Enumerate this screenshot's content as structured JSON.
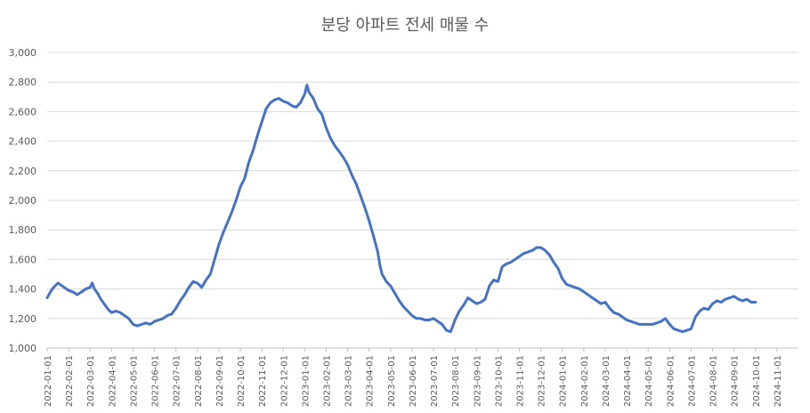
{
  "chart_data": {
    "type": "line",
    "title": "분당 아파트 전세 매물 수",
    "xlabel": "",
    "ylabel": "",
    "ylim": [
      1000,
      3000
    ],
    "y_ticks": [
      "1,000",
      "1,200",
      "1,400",
      "1,600",
      "1,800",
      "2,000",
      "2,200",
      "2,400",
      "2,600",
      "2,800",
      "3,000"
    ],
    "categories": [
      "2022-01-01",
      "2022-02-01",
      "2022-03-01",
      "2022-04-01",
      "2022-05-01",
      "2022-06-01",
      "2022-07-01",
      "2022-08-01",
      "2022-09-01",
      "2022-10-01",
      "2022-11-01",
      "2022-12-01",
      "2023-01-01",
      "2023-02-01",
      "2023-03-01",
      "2023-04-01",
      "2023-05-01",
      "2023-06-01",
      "2023-07-01",
      "2023-08-01",
      "2023-09-01",
      "2023-10-01",
      "2023-11-01",
      "2023-12-01",
      "2024-01-01",
      "2024-02-01",
      "2024-03-01",
      "2024-04-01",
      "2024-05-01",
      "2024-06-01",
      "2024-07-01",
      "2024-08-01",
      "2024-09-01",
      "2024-10-01",
      "2024-11-01"
    ],
    "grid": true,
    "legend": "none",
    "color": "#4472c4",
    "series": [
      {
        "values": [
          [
            0.0,
            1340
          ],
          [
            0.15,
            1380
          ],
          [
            0.3,
            1410
          ],
          [
            0.5,
            1440
          ],
          [
            0.7,
            1420
          ],
          [
            0.9,
            1400
          ],
          [
            1.0,
            1390
          ],
          [
            1.2,
            1380
          ],
          [
            1.4,
            1360
          ],
          [
            1.6,
            1380
          ],
          [
            1.8,
            1400
          ],
          [
            2.0,
            1410
          ],
          [
            2.1,
            1440
          ],
          [
            2.2,
            1400
          ],
          [
            2.35,
            1370
          ],
          [
            2.5,
            1330
          ],
          [
            2.7,
            1290
          ],
          [
            2.85,
            1260
          ],
          [
            3.0,
            1240
          ],
          [
            3.2,
            1250
          ],
          [
            3.4,
            1240
          ],
          [
            3.6,
            1220
          ],
          [
            3.8,
            1200
          ],
          [
            4.0,
            1160
          ],
          [
            4.2,
            1150
          ],
          [
            4.4,
            1160
          ],
          [
            4.6,
            1170
          ],
          [
            4.8,
            1160
          ],
          [
            5.0,
            1180
          ],
          [
            5.2,
            1190
          ],
          [
            5.4,
            1200
          ],
          [
            5.6,
            1220
          ],
          [
            5.8,
            1230
          ],
          [
            6.0,
            1270
          ],
          [
            6.2,
            1320
          ],
          [
            6.4,
            1360
          ],
          [
            6.6,
            1410
          ],
          [
            6.8,
            1450
          ],
          [
            7.0,
            1440
          ],
          [
            7.2,
            1410
          ],
          [
            7.4,
            1460
          ],
          [
            7.6,
            1500
          ],
          [
            7.8,
            1600
          ],
          [
            8.0,
            1700
          ],
          [
            8.2,
            1780
          ],
          [
            8.4,
            1850
          ],
          [
            8.6,
            1920
          ],
          [
            8.8,
            2000
          ],
          [
            9.0,
            2090
          ],
          [
            9.2,
            2150
          ],
          [
            9.4,
            2260
          ],
          [
            9.6,
            2340
          ],
          [
            9.8,
            2440
          ],
          [
            10.0,
            2530
          ],
          [
            10.2,
            2620
          ],
          [
            10.4,
            2660
          ],
          [
            10.6,
            2680
          ],
          [
            10.8,
            2690
          ],
          [
            11.0,
            2670
          ],
          [
            11.2,
            2660
          ],
          [
            11.4,
            2640
          ],
          [
            11.6,
            2630
          ],
          [
            11.8,
            2660
          ],
          [
            12.0,
            2720
          ],
          [
            12.1,
            2780
          ],
          [
            12.2,
            2730
          ],
          [
            12.4,
            2690
          ],
          [
            12.6,
            2620
          ],
          [
            12.8,
            2580
          ],
          [
            13.0,
            2490
          ],
          [
            13.2,
            2420
          ],
          [
            13.4,
            2370
          ],
          [
            13.6,
            2330
          ],
          [
            13.8,
            2290
          ],
          [
            14.0,
            2240
          ],
          [
            14.2,
            2170
          ],
          [
            14.4,
            2110
          ],
          [
            14.6,
            2030
          ],
          [
            14.8,
            1950
          ],
          [
            15.0,
            1860
          ],
          [
            15.2,
            1760
          ],
          [
            15.4,
            1650
          ],
          [
            15.5,
            1560
          ],
          [
            15.6,
            1500
          ],
          [
            15.8,
            1450
          ],
          [
            16.0,
            1420
          ],
          [
            16.2,
            1370
          ],
          [
            16.4,
            1320
          ],
          [
            16.6,
            1280
          ],
          [
            16.8,
            1250
          ],
          [
            17.0,
            1220
          ],
          [
            17.2,
            1200
          ],
          [
            17.4,
            1200
          ],
          [
            17.6,
            1190
          ],
          [
            17.8,
            1190
          ],
          [
            18.0,
            1200
          ],
          [
            18.2,
            1180
          ],
          [
            18.4,
            1160
          ],
          [
            18.6,
            1120
          ],
          [
            18.8,
            1110
          ],
          [
            19.0,
            1190
          ],
          [
            19.2,
            1250
          ],
          [
            19.4,
            1290
          ],
          [
            19.6,
            1340
          ],
          [
            19.8,
            1320
          ],
          [
            20.0,
            1300
          ],
          [
            20.2,
            1310
          ],
          [
            20.4,
            1330
          ],
          [
            20.6,
            1420
          ],
          [
            20.8,
            1460
          ],
          [
            21.0,
            1450
          ],
          [
            21.2,
            1550
          ],
          [
            21.4,
            1570
          ],
          [
            21.6,
            1580
          ],
          [
            21.8,
            1600
          ],
          [
            22.0,
            1620
          ],
          [
            22.2,
            1640
          ],
          [
            22.4,
            1650
          ],
          [
            22.6,
            1660
          ],
          [
            22.8,
            1680
          ],
          [
            23.0,
            1680
          ],
          [
            23.2,
            1660
          ],
          [
            23.4,
            1630
          ],
          [
            23.6,
            1580
          ],
          [
            23.8,
            1540
          ],
          [
            24.0,
            1470
          ],
          [
            24.2,
            1430
          ],
          [
            24.4,
            1420
          ],
          [
            24.6,
            1410
          ],
          [
            24.8,
            1400
          ],
          [
            25.0,
            1380
          ],
          [
            25.2,
            1360
          ],
          [
            25.4,
            1340
          ],
          [
            25.6,
            1320
          ],
          [
            25.8,
            1300
          ],
          [
            26.0,
            1310
          ],
          [
            26.2,
            1270
          ],
          [
            26.4,
            1240
          ],
          [
            26.6,
            1230
          ],
          [
            26.8,
            1210
          ],
          [
            27.0,
            1190
          ],
          [
            27.2,
            1180
          ],
          [
            27.4,
            1170
          ],
          [
            27.6,
            1160
          ],
          [
            27.8,
            1160
          ],
          [
            28.0,
            1160
          ],
          [
            28.2,
            1160
          ],
          [
            28.4,
            1170
          ],
          [
            28.6,
            1180
          ],
          [
            28.8,
            1200
          ],
          [
            29.0,
            1160
          ],
          [
            29.2,
            1130
          ],
          [
            29.4,
            1120
          ],
          [
            29.6,
            1110
          ],
          [
            29.8,
            1120
          ],
          [
            30.0,
            1130
          ],
          [
            30.2,
            1210
          ],
          [
            30.4,
            1250
          ],
          [
            30.6,
            1270
          ],
          [
            30.8,
            1260
          ],
          [
            31.0,
            1300
          ],
          [
            31.2,
            1320
          ],
          [
            31.4,
            1310
          ],
          [
            31.6,
            1330
          ],
          [
            31.8,
            1340
          ],
          [
            32.0,
            1350
          ],
          [
            32.2,
            1330
          ],
          [
            32.4,
            1320
          ],
          [
            32.6,
            1330
          ],
          [
            32.8,
            1310
          ],
          [
            33.0,
            1310
          ]
        ]
      }
    ]
  }
}
